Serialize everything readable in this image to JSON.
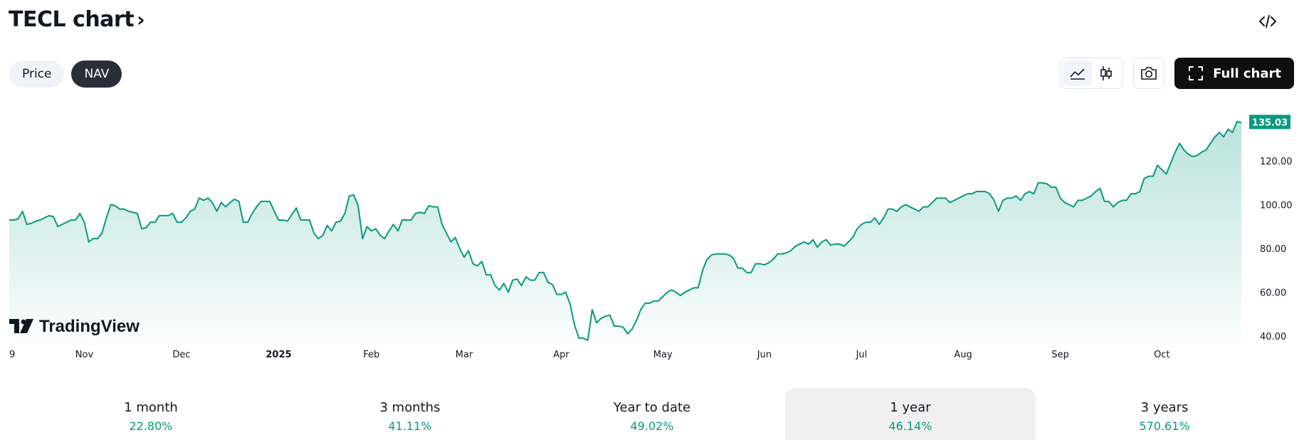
{
  "header": {
    "title": "TECL chart",
    "title_chevron": "›",
    "embed_icon": "code-embed-icon"
  },
  "pills": [
    {
      "label": "Price",
      "active": false
    },
    {
      "label": "NAV",
      "active": true
    }
  ],
  "toolbar": {
    "chart_style_buttons": [
      {
        "icon": "area-chart-icon",
        "active": true
      },
      {
        "icon": "candlestick-icon",
        "active": false
      }
    ],
    "snapshot_icon": "camera-icon",
    "full_chart_label": "Full chart",
    "full_chart_icon": "fullscreen-icon"
  },
  "brand": {
    "name": "TradingView",
    "logo_icon": "tradingview-logo-icon"
  },
  "colors": {
    "line": "#089981",
    "fill": "#089981",
    "badge": "#089981",
    "text": "#131722"
  },
  "chart_data": {
    "type": "area",
    "last_value_badge": "135.03",
    "y_ticks": [
      "40.00",
      "60.00",
      "80.00",
      "100.00",
      "120.00"
    ],
    "ylim": [
      38,
      148
    ],
    "x_tick_labels": [
      "9",
      "Nov",
      "Dec",
      "2025",
      "Feb",
      "Mar",
      "Apr",
      "May",
      "Jun",
      "Jul",
      "Aug",
      "Sep",
      "Oct"
    ],
    "x_tick_bold": [
      false,
      false,
      false,
      true,
      false,
      false,
      false,
      false,
      false,
      false,
      false,
      false,
      false
    ],
    "x_tick_index": [
      0,
      17,
      39,
      61,
      82,
      103,
      125,
      148,
      171,
      193,
      216,
      238,
      261
    ],
    "values": [
      93,
      93,
      93.5,
      97,
      91,
      91.5,
      92.5,
      93,
      94,
      95,
      94.5,
      90,
      91,
      92,
      93,
      93,
      96,
      92,
      83,
      84.5,
      84.5,
      87,
      94,
      100,
      99.5,
      98,
      98,
      97,
      96.5,
      96,
      89,
      89.5,
      92,
      92,
      95,
      95,
      95,
      96,
      92,
      92,
      94,
      97,
      98,
      103,
      102,
      103,
      101,
      97,
      101,
      99,
      101,
      102.5,
      101.5,
      92,
      92,
      96,
      99,
      101.5,
      101.5,
      101.5,
      97,
      93,
      93,
      92.5,
      95.5,
      98.5,
      93,
      93,
      93,
      87,
      84.5,
      86,
      90.5,
      88,
      92,
      92.5,
      96,
      104,
      104.5,
      99.5,
      84.5,
      90,
      88,
      89,
      86,
      84.5,
      88,
      91,
      88,
      93,
      93,
      93,
      96,
      96.5,
      96,
      99.5,
      99,
      99,
      91,
      87,
      83,
      85,
      80,
      76,
      79,
      73,
      72,
      74,
      68,
      68,
      63,
      61,
      64,
      60,
      65.5,
      66,
      63,
      67,
      65.5,
      65.5,
      69,
      69,
      64.5,
      63.5,
      59,
      59,
      60,
      54.5,
      45,
      39,
      39,
      38,
      52,
      46,
      48,
      49,
      49.5,
      44.5,
      44.5,
      44,
      41,
      43,
      47,
      52,
      55,
      55,
      56,
      56,
      58,
      60,
      61,
      60,
      58.5,
      60,
      61,
      62,
      62,
      70,
      75,
      77,
      77.5,
      77.5,
      77.5,
      77,
      75.5,
      71,
      71,
      69,
      69,
      73,
      73,
      72.5,
      73.5,
      75,
      77.5,
      77.5,
      78,
      79,
      81,
      82,
      83,
      82,
      84,
      80.5,
      83,
      84,
      81.5,
      82,
      82,
      81,
      83,
      85,
      89,
      91,
      92,
      92,
      94,
      91,
      94,
      98,
      98,
      97,
      99,
      100,
      99,
      98,
      97,
      99,
      99,
      101,
      103,
      103,
      103,
      101,
      102,
      103,
      104,
      105,
      105,
      106,
      106,
      106,
      105,
      102,
      97,
      102,
      103,
      103,
      104,
      102,
      105,
      106,
      105,
      110,
      110,
      109.5,
      108,
      108,
      103,
      101,
      100,
      99,
      102,
      102,
      103,
      104,
      106,
      107.5,
      101.5,
      101.5,
      99,
      101,
      102,
      102,
      105,
      105,
      106,
      112,
      113,
      113,
      118,
      116,
      114,
      119,
      124,
      128,
      125,
      123,
      122,
      122.5,
      124,
      125,
      128,
      131,
      133,
      131,
      134.5,
      133,
      138,
      137.5
    ]
  },
  "performance_tabs": [
    {
      "label": "1 month",
      "value": "22.80%",
      "active": false
    },
    {
      "label": "3 months",
      "value": "41.11%",
      "active": false
    },
    {
      "label": "Year to date",
      "value": "49.02%",
      "active": false
    },
    {
      "label": "1 year",
      "value": "46.14%",
      "active": true
    },
    {
      "label": "3 years",
      "value": "570.61%",
      "active": false
    }
  ]
}
